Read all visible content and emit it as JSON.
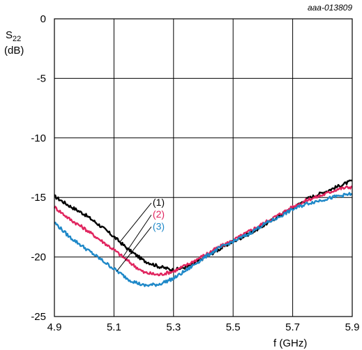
{
  "chart_data": {
    "type": "line",
    "code": "aaa-013809",
    "ylabel_main": "S",
    "ylabel_sub": "22",
    "ylabel_unit": "(dB)",
    "xlabel": "f (GHz)",
    "xlim": [
      4.9,
      5.9
    ],
    "ylim": [
      -25,
      0
    ],
    "xticks": [
      "4.9",
      "5.1",
      "5.3",
      "5.5",
      "5.7",
      "5.9"
    ],
    "yticks": [
      "0",
      "-5",
      "-10",
      "-15",
      "-20",
      "-25"
    ],
    "grid": true,
    "series": [
      {
        "name": "(1)",
        "color": "#000000",
        "x": [
          4.9,
          4.95,
          5.0,
          5.05,
          5.1,
          5.15,
          5.2,
          5.25,
          5.3,
          5.35,
          5.4,
          5.45,
          5.5,
          5.55,
          5.6,
          5.65,
          5.7,
          5.75,
          5.8,
          5.85,
          5.9
        ],
        "y": [
          -14.9,
          -15.7,
          -16.4,
          -17.3,
          -18.3,
          -19.4,
          -20.3,
          -20.8,
          -21.1,
          -20.8,
          -20.1,
          -19.4,
          -18.7,
          -18.1,
          -17.4,
          -16.6,
          -15.9,
          -15.1,
          -14.6,
          -14.1,
          -13.6
        ]
      },
      {
        "name": "(2)",
        "color": "#e0245e",
        "x": [
          4.9,
          4.95,
          5.0,
          5.05,
          5.1,
          5.15,
          5.2,
          5.25,
          5.3,
          5.35,
          5.4,
          5.45,
          5.5,
          5.55,
          5.6,
          5.65,
          5.7,
          5.75,
          5.8,
          5.85,
          5.9
        ],
        "y": [
          -15.8,
          -16.8,
          -17.6,
          -18.5,
          -19.4,
          -20.4,
          -21.3,
          -21.5,
          -21.2,
          -20.6,
          -19.9,
          -19.2,
          -18.6,
          -17.9,
          -17.2,
          -16.5,
          -15.8,
          -15.2,
          -14.8,
          -14.3,
          -14.1
        ]
      },
      {
        "name": "(3)",
        "color": "#1e88c8",
        "x": [
          4.9,
          4.95,
          5.0,
          5.05,
          5.1,
          5.15,
          5.2,
          5.25,
          5.3,
          5.35,
          5.4,
          5.45,
          5.5,
          5.55,
          5.6,
          5.65,
          5.7,
          5.75,
          5.8,
          5.85,
          5.9
        ],
        "y": [
          -17.1,
          -18.3,
          -19.2,
          -20.1,
          -21.0,
          -21.9,
          -22.4,
          -22.3,
          -21.8,
          -21.0,
          -20.1,
          -19.3,
          -18.7,
          -18.1,
          -17.3,
          -16.7,
          -16.0,
          -15.5,
          -15.2,
          -14.9,
          -14.7
        ]
      }
    ]
  }
}
